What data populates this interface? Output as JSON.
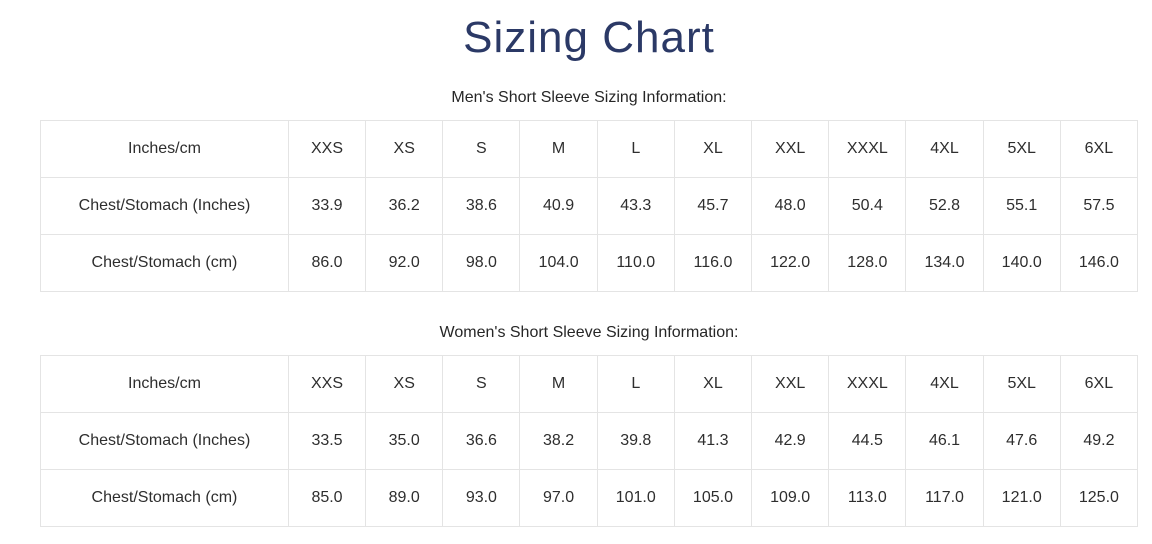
{
  "title": "Sizing Chart",
  "theme": {
    "title_color": "#2b3966",
    "text_color": "#2e2e2e",
    "table_border_color": "#e4e4e4"
  },
  "tables": [
    {
      "caption": "Men's Short Sleeve Sizing Information:",
      "header": [
        "Inches/cm",
        "XXS",
        "XS",
        "S",
        "M",
        "L",
        "XL",
        "XXL",
        "XXXL",
        "4XL",
        "5XL",
        "6XL"
      ],
      "rows": [
        [
          "Chest/Stomach (Inches)",
          "33.9",
          "36.2",
          "38.6",
          "40.9",
          "43.3",
          "45.7",
          "48.0",
          "50.4",
          "52.8",
          "55.1",
          "57.5"
        ],
        [
          "Chest/Stomach (cm)",
          "86.0",
          "92.0",
          "98.0",
          "104.0",
          "110.0",
          "116.0",
          "122.0",
          "128.0",
          "134.0",
          "140.0",
          "146.0"
        ]
      ]
    },
    {
      "caption": "Women's Short Sleeve Sizing Information:",
      "header": [
        "Inches/cm",
        "XXS",
        "XS",
        "S",
        "M",
        "L",
        "XL",
        "XXL",
        "XXXL",
        "4XL",
        "5XL",
        "6XL"
      ],
      "rows": [
        [
          "Chest/Stomach (Inches)",
          "33.5",
          "35.0",
          "36.6",
          "38.2",
          "39.8",
          "41.3",
          "42.9",
          "44.5",
          "46.1",
          "47.6",
          "49.2"
        ],
        [
          "Chest/Stomach (cm)",
          "85.0",
          "89.0",
          "93.0",
          "97.0",
          "101.0",
          "105.0",
          "109.0",
          "113.0",
          "117.0",
          "121.0",
          "125.0"
        ]
      ]
    }
  ]
}
